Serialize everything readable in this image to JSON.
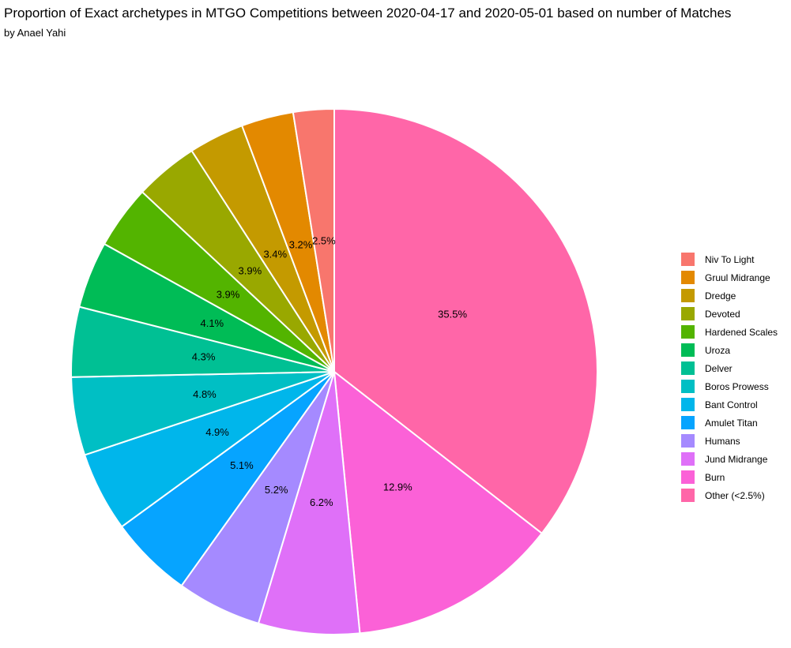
{
  "header": {
    "title": "Proportion of Exact archetypes in MTGO Competitions between 2020-04-17 and 2020-05-01 based on number of Matches",
    "subtitle": "by Anael Yahi"
  },
  "chart_data": {
    "type": "pie",
    "title": "Proportion of Exact archetypes in MTGO Competitions between 2020-04-17 and 2020-05-01 based on number of Matches",
    "subtitle": "by Anael Yahi",
    "legend_position": "right",
    "slices": [
      {
        "label": "Niv To Light",
        "value": 2.5,
        "value_label": "2.5%",
        "color": "#F8766D"
      },
      {
        "label": "Gruul Midrange",
        "value": 3.2,
        "value_label": "3.2%",
        "color": "#E38900"
      },
      {
        "label": "Dredge",
        "value": 3.4,
        "value_label": "3.4%",
        "color": "#C49A00"
      },
      {
        "label": "Devoted",
        "value": 3.9,
        "value_label": "3.9%",
        "color": "#99A800"
      },
      {
        "label": "Hardened Scales",
        "value": 3.9,
        "value_label": "3.9%",
        "color": "#53B400"
      },
      {
        "label": "Uroza",
        "value": 4.1,
        "value_label": "4.1%",
        "color": "#00BC56"
      },
      {
        "label": "Delver",
        "value": 4.3,
        "value_label": "4.3%",
        "color": "#00C094"
      },
      {
        "label": "Boros Prowess",
        "value": 4.8,
        "value_label": "4.8%",
        "color": "#00BFC4"
      },
      {
        "label": "Bant Control",
        "value": 4.9,
        "value_label": "4.9%",
        "color": "#00B6EB"
      },
      {
        "label": "Amulet Titan",
        "value": 5.1,
        "value_label": "5.1%",
        "color": "#06A4FF"
      },
      {
        "label": "Humans",
        "value": 5.2,
        "value_label": "5.2%",
        "color": "#A58AFF"
      },
      {
        "label": "Jund Midrange",
        "value": 6.2,
        "value_label": "6.2%",
        "color": "#DF70F8"
      },
      {
        "label": "Burn",
        "value": 12.9,
        "value_label": "12.9%",
        "color": "#FB61D7"
      },
      {
        "label": "Other (<2.5%)",
        "value": 35.5,
        "value_label": "35.5%",
        "color": "#FF66A8"
      }
    ]
  }
}
